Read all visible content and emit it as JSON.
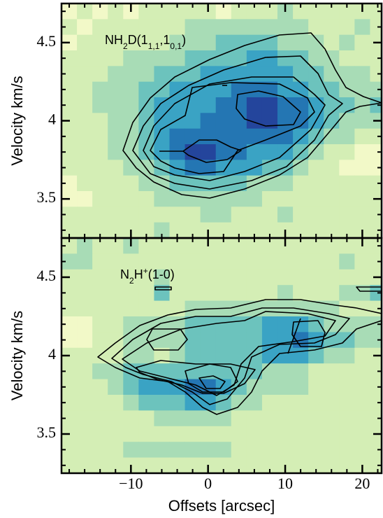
{
  "chart_data": [
    {
      "type": "heatmap",
      "title_parts": [
        {
          "text": "NH",
          "shift": "none"
        },
        {
          "text": "2",
          "shift": "sub"
        },
        {
          "text": "D(1",
          "shift": "none"
        },
        {
          "text": "1,1",
          "shift": "sub"
        },
        {
          "text": ",1",
          "shift": "none"
        },
        {
          "text": "0,1",
          "shift": "sub"
        },
        {
          "text": ")",
          "shift": "none"
        }
      ],
      "ylabel": "Velocity km/s",
      "x": [
        -18,
        -16,
        -14,
        -12,
        -10,
        -8,
        -6,
        -4,
        -2,
        0,
        2,
        4,
        6,
        8,
        10,
        12,
        14,
        16,
        18,
        20,
        22
      ],
      "y": [
        4.7,
        4.6,
        4.5,
        4.4,
        4.3,
        4.2,
        4.1,
        4.0,
        3.9,
        3.8,
        3.7,
        3.6,
        3.5,
        3.4,
        3.3
      ],
      "z": [
        [
          1,
          2,
          1,
          2,
          1,
          2,
          2,
          2,
          2,
          2,
          1,
          2,
          2,
          2,
          3,
          2,
          2,
          2,
          2,
          2,
          2
        ],
        [
          2,
          1,
          2,
          2,
          2,
          2,
          2,
          2,
          3,
          3,
          3,
          3,
          3,
          3,
          3,
          3,
          2,
          2,
          2,
          3,
          2
        ],
        [
          1,
          2,
          2,
          2,
          2,
          2,
          2,
          3,
          3,
          3,
          4,
          4,
          4,
          4,
          3,
          3,
          3,
          2,
          3,
          2,
          2
        ],
        [
          2,
          2,
          2,
          2,
          3,
          3,
          3,
          3,
          4,
          4,
          4,
          4,
          5,
          5,
          4,
          4,
          3,
          3,
          2,
          2,
          2
        ],
        [
          2,
          2,
          2,
          3,
          3,
          3,
          4,
          4,
          4,
          5,
          5,
          5,
          5,
          5,
          5,
          4,
          4,
          3,
          3,
          3,
          2
        ],
        [
          2,
          2,
          3,
          3,
          3,
          4,
          4,
          5,
          5,
          5,
          5,
          6,
          6,
          6,
          5,
          5,
          4,
          4,
          3,
          3,
          3
        ],
        [
          2,
          2,
          3,
          3,
          3,
          4,
          5,
          5,
          5,
          5,
          6,
          6,
          7,
          7,
          6,
          6,
          5,
          4,
          4,
          3,
          4
        ],
        [
          2,
          2,
          2,
          3,
          3,
          4,
          5,
          5,
          5,
          6,
          6,
          6,
          7,
          7,
          6,
          6,
          5,
          4,
          3,
          3,
          3
        ],
        [
          2,
          2,
          2,
          3,
          3,
          4,
          5,
          6,
          6,
          6,
          6,
          6,
          6,
          6,
          6,
          5,
          4,
          3,
          3,
          2,
          2
        ],
        [
          2,
          2,
          2,
          3,
          3,
          4,
          5,
          6,
          7,
          7,
          6,
          6,
          5,
          5,
          5,
          4,
          3,
          2,
          2,
          1,
          1
        ],
        [
          2,
          2,
          2,
          2,
          3,
          3,
          4,
          5,
          6,
          6,
          5,
          5,
          5,
          4,
          4,
          3,
          2,
          2,
          1,
          1,
          1
        ],
        [
          1,
          2,
          2,
          2,
          2,
          3,
          3,
          4,
          4,
          4,
          4,
          4,
          3,
          3,
          3,
          2,
          2,
          2,
          2,
          2,
          2
        ],
        [
          1,
          1,
          2,
          2,
          2,
          2,
          3,
          3,
          3,
          3,
          3,
          3,
          3,
          2,
          2,
          2,
          2,
          2,
          2,
          2,
          2
        ],
        [
          2,
          2,
          2,
          2,
          2,
          2,
          2,
          2,
          2,
          3,
          3,
          2,
          2,
          2,
          3,
          2,
          2,
          2,
          2,
          2,
          2
        ],
        [
          2,
          2,
          2,
          2,
          2,
          2,
          3,
          2,
          2,
          2,
          2,
          2,
          2,
          2,
          2,
          2,
          2,
          2,
          2,
          2,
          2
        ]
      ],
      "colormap": [
        "#ffffd9",
        "#f2f9c8",
        "#d4eeb5",
        "#a8dcb6",
        "#6cc3bd",
        "#3aa3c4",
        "#2476b3",
        "#24459c"
      ],
      "xlim": [
        -19,
        22.5
      ],
      "ylim": [
        3.25,
        4.75
      ],
      "xticks": [
        -10,
        0,
        10,
        20
      ],
      "xticklabels": false,
      "yticks": [
        3.5,
        4,
        {
          "value": 4.5,
          "label": "4.5"
        }
      ],
      "xminorticks": [
        -18,
        -16,
        -14,
        -12,
        -8,
        -6,
        -4,
        -2,
        2,
        4,
        6,
        8,
        12,
        14,
        16,
        18,
        22
      ],
      "yminorticks": [
        3.3,
        3.4,
        3.6,
        3.7,
        3.8,
        3.9,
        4.1,
        4.2,
        4.3,
        4.4,
        4.6,
        4.7
      ]
    },
    {
      "type": "heatmap",
      "title_parts": [
        {
          "text": "N",
          "shift": "none"
        },
        {
          "text": "2",
          "shift": "sub"
        },
        {
          "text": "H",
          "shift": "none"
        },
        {
          "text": "+",
          "shift": "super"
        },
        {
          "text": "(1-0)",
          "shift": "none"
        }
      ],
      "ylabel": "Velocity km/s",
      "xlabel": "Offsets [arcsec]",
      "x": [
        -18,
        -16,
        -14,
        -12,
        -10,
        -8,
        -6,
        -4,
        -2,
        0,
        2,
        4,
        6,
        8,
        10,
        12,
        14,
        16,
        18,
        20,
        22
      ],
      "y": [
        4.7,
        4.6,
        4.5,
        4.4,
        4.3,
        4.2,
        4.1,
        4.0,
        3.9,
        3.8,
        3.7,
        3.6,
        3.5,
        3.4,
        3.3
      ],
      "z": [
        [
          2,
          3,
          2,
          2,
          3,
          2,
          2,
          2,
          2,
          2,
          2,
          2,
          2,
          2,
          2,
          2,
          2,
          2,
          2,
          2,
          2
        ],
        [
          3,
          3,
          2,
          2,
          2,
          2,
          2,
          2,
          2,
          2,
          2,
          2,
          2,
          2,
          2,
          2,
          2,
          2,
          3,
          2,
          2
        ],
        [
          2,
          2,
          2,
          2,
          2,
          2,
          3,
          2,
          2,
          2,
          2,
          2,
          2,
          2,
          2,
          2,
          2,
          2,
          2,
          2,
          2
        ],
        [
          2,
          2,
          2,
          2,
          2,
          2,
          4,
          2,
          2,
          2,
          2,
          2,
          2,
          2,
          3,
          2,
          2,
          2,
          3,
          3,
          4
        ],
        [
          2,
          2,
          2,
          2,
          2,
          2,
          2,
          2,
          3,
          3,
          3,
          3,
          3,
          3,
          3,
          3,
          3,
          3,
          2,
          2,
          2
        ],
        [
          1,
          1,
          2,
          2,
          3,
          3,
          3,
          3,
          4,
          4,
          4,
          4,
          4,
          5,
          5,
          5,
          4,
          3,
          3,
          3,
          3
        ],
        [
          1,
          1,
          2,
          2,
          3,
          3,
          3,
          3,
          4,
          4,
          4,
          4,
          4,
          5,
          5,
          6,
          5,
          4,
          4,
          3,
          3
        ],
        [
          2,
          2,
          2,
          2,
          3,
          3,
          2,
          3,
          4,
          4,
          4,
          4,
          4,
          5,
          5,
          5,
          4,
          3,
          3,
          2,
          2
        ],
        [
          2,
          2,
          3,
          3,
          4,
          4,
          4,
          4,
          4,
          4,
          4,
          4,
          4,
          3,
          3,
          3,
          2,
          2,
          2,
          2,
          2
        ],
        [
          2,
          2,
          2,
          3,
          4,
          5,
          5,
          5,
          6,
          6,
          5,
          4,
          3,
          3,
          3,
          3,
          2,
          2,
          2,
          2,
          2
        ],
        [
          2,
          2,
          2,
          2,
          3,
          4,
          4,
          4,
          5,
          5,
          4,
          3,
          3,
          2,
          2,
          2,
          2,
          2,
          2,
          2,
          2
        ],
        [
          2,
          2,
          2,
          2,
          2,
          2,
          3,
          3,
          3,
          3,
          3,
          2,
          2,
          2,
          2,
          2,
          2,
          2,
          2,
          2,
          2
        ],
        [
          2,
          2,
          2,
          2,
          2,
          2,
          2,
          2,
          2,
          2,
          2,
          2,
          2,
          2,
          2,
          2,
          2,
          2,
          2,
          2,
          2
        ],
        [
          2,
          2,
          2,
          2,
          3,
          3,
          3,
          3,
          3,
          3,
          3,
          2,
          2,
          2,
          2,
          2,
          2,
          2,
          2,
          2,
          2
        ],
        [
          2,
          2,
          2,
          2,
          2,
          2,
          2,
          2,
          2,
          2,
          2,
          2,
          2,
          2,
          2,
          2,
          2,
          2,
          2,
          2,
          2
        ]
      ],
      "colormap": [
        "#ffffd9",
        "#f2f9c8",
        "#d4eeb5",
        "#a8dcb6",
        "#6cc3bd",
        "#3aa3c4",
        "#2476b3",
        "#24459c"
      ],
      "xlim": [
        -19,
        22.5
      ],
      "ylim": [
        3.25,
        4.75
      ],
      "xticks": [
        {
          "value": -10,
          "label": "−10"
        },
        0,
        10,
        20
      ],
      "xticklabels": true,
      "yticks": [
        3.5,
        4,
        {
          "value": 4.5,
          "label": "4.5"
        }
      ],
      "xminorticks": [
        -18,
        -16,
        -14,
        -12,
        -8,
        -6,
        -4,
        -2,
        2,
        4,
        6,
        8,
        12,
        14,
        16,
        18,
        22
      ],
      "yminorticks": [
        3.3,
        3.4,
        3.6,
        3.7,
        3.8,
        3.9,
        4.1,
        4.2,
        4.3,
        4.4,
        4.6,
        4.7
      ]
    }
  ]
}
